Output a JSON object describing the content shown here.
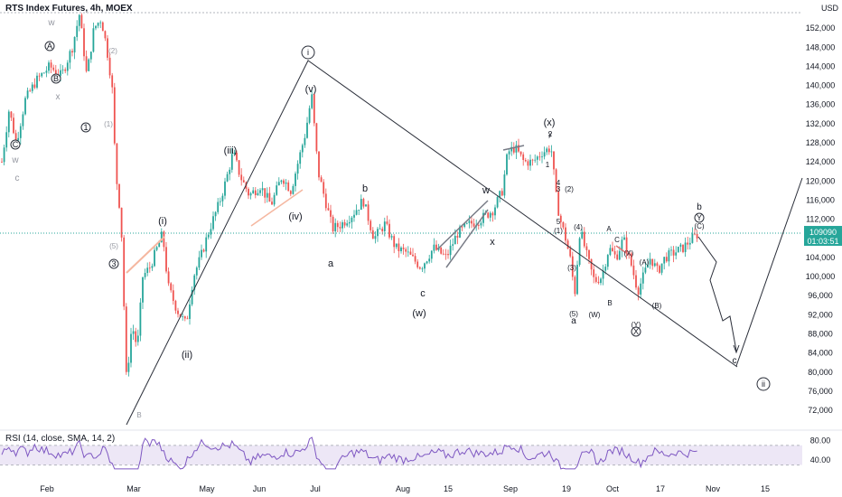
{
  "header": {
    "title": "RTS Index Futures, 4h, MOEX",
    "currency": "USD",
    "rsi_label": "RSI (14, close, SMA, 14, 2)"
  },
  "price_badge": {
    "price": "109090",
    "countdown": "01:03:51"
  },
  "colors": {
    "up": "#26a69a",
    "down": "#ef5350",
    "bg": "#ffffff",
    "rsi": "#7e57c2",
    "rsi_band": "#ede7f6",
    "badge": "#26a69a",
    "wave_line": "#2a2e39",
    "label": "#131722"
  },
  "chart_data": {
    "type": "candlestick",
    "title": "RTS Index Futures, 4h, MOEX",
    "y_ticks": [
      152000,
      148000,
      144000,
      140000,
      136000,
      132000,
      128000,
      124000,
      120000,
      116000,
      112000,
      108000,
      104000,
      100000,
      96000,
      92000,
      88000,
      84000,
      80000,
      76000,
      72000
    ],
    "x_ticks": [
      "Feb",
      "Mar",
      "May",
      "Jun",
      "Jul",
      "Aug",
      "15",
      "Sep",
      "19",
      "Oct",
      "17",
      "Nov",
      "15"
    ],
    "ylim": [
      69000,
      156000
    ],
    "last_price": 109090,
    "rsi": {
      "label": "RSI (14, close, SMA, 14, 2)",
      "y_ticks": [
        80.0,
        40.0
      ],
      "band": [
        30,
        70
      ]
    },
    "wave_labels": [
      {
        "text": "(i)"
      },
      {
        "text": "(ii)"
      },
      {
        "text": "(iii)"
      },
      {
        "text": "(iv)"
      },
      {
        "text": "(v)"
      },
      {
        "text": "ⓘ"
      },
      {
        "text": "a"
      },
      {
        "text": "b"
      },
      {
        "text": "c"
      },
      {
        "text": "(w)"
      },
      {
        "text": "w"
      },
      {
        "text": "x"
      },
      {
        "text": "(x)"
      },
      {
        "text": "y"
      },
      {
        "text": "1"
      },
      {
        "text": "2"
      },
      {
        "text": "3"
      },
      {
        "text": "4"
      },
      {
        "text": "5"
      },
      {
        "text": "(1)"
      },
      {
        "text": "(2)"
      },
      {
        "text": "(3)"
      },
      {
        "text": "(4)"
      },
      {
        "text": "(5)"
      },
      {
        "text": "(W)"
      },
      {
        "text": "(X)"
      },
      {
        "text": "(Y)"
      },
      {
        "text": "(A)"
      },
      {
        "text": "(B)"
      },
      {
        "text": "(C)"
      },
      {
        "text": "Ⓧ"
      },
      {
        "text": "Ⓨ"
      },
      {
        "text": "ⓘⓘ"
      },
      {
        "text": "A"
      },
      {
        "text": "B"
      },
      {
        "text": "C"
      }
    ]
  }
}
